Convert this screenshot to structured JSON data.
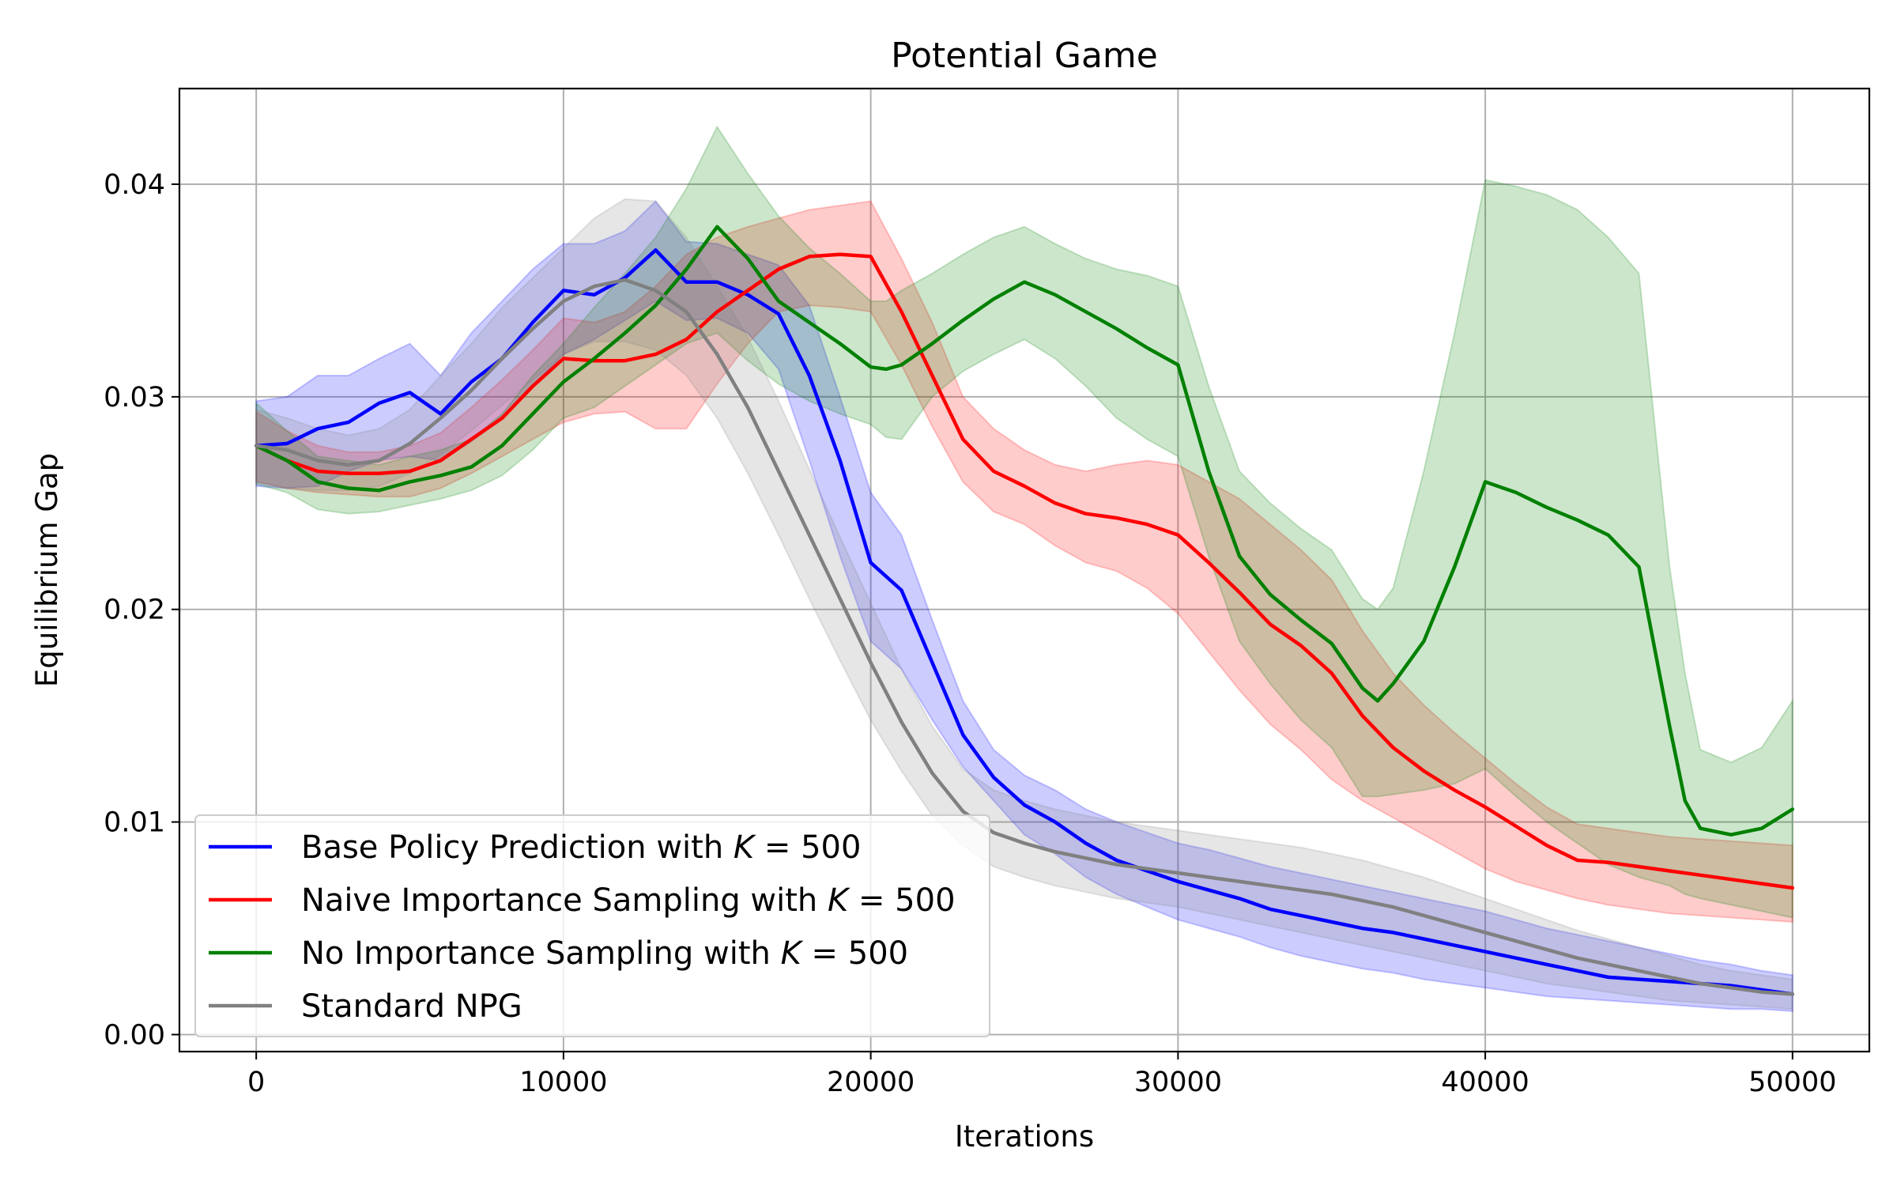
{
  "chart_data": {
    "type": "line",
    "title": "Potential Game",
    "xlabel": "Iterations",
    "ylabel": "Equilibrium Gap",
    "xlim": [
      -2500,
      52500
    ],
    "ylim": [
      -0.0008,
      0.0445
    ],
    "xticks": [
      0,
      10000,
      20000,
      30000,
      40000,
      50000
    ],
    "xtick_labels": [
      "0",
      "10000",
      "20000",
      "30000",
      "40000",
      "50000"
    ],
    "yticks": [
      0.0,
      0.01,
      0.02,
      0.03,
      0.04
    ],
    "ytick_labels": [
      "0.00",
      "0.01",
      "0.02",
      "0.03",
      "0.04"
    ],
    "grid": true,
    "legend_position": "lower-left",
    "series": [
      {
        "name": "Base Policy Prediction with K = 500",
        "legend": {
          "prefix": "Base Policy Prediction with ",
          "var": "K",
          "suffix": " = 500"
        },
        "color": "#0000ff",
        "band_color": "#0000ff",
        "x": [
          0,
          1000,
          2000,
          3000,
          4000,
          5000,
          6000,
          7000,
          8000,
          9000,
          10000,
          11000,
          12000,
          13000,
          14000,
          15000,
          16000,
          17000,
          18000,
          19000,
          20000,
          21000,
          22000,
          23000,
          24000,
          25000,
          26000,
          27000,
          28000,
          29000,
          30000,
          31000,
          32000,
          33000,
          34000,
          35000,
          36000,
          37000,
          38000,
          39000,
          40000,
          41000,
          42000,
          43000,
          44000,
          45000,
          46000,
          47000,
          48000,
          49000,
          50000
        ],
        "y": [
          0.0277,
          0.0278,
          0.0285,
          0.0288,
          0.0297,
          0.0302,
          0.0292,
          0.0307,
          0.0318,
          0.0335,
          0.035,
          0.0348,
          0.0356,
          0.0369,
          0.0354,
          0.0354,
          0.0348,
          0.0339,
          0.031,
          0.027,
          0.0222,
          0.0209,
          0.0175,
          0.0141,
          0.0121,
          0.0108,
          0.01,
          0.009,
          0.0082,
          0.0077,
          0.0072,
          0.0068,
          0.0064,
          0.0059,
          0.0056,
          0.0053,
          0.005,
          0.0048,
          0.0045,
          0.0042,
          0.0039,
          0.0036,
          0.0033,
          0.003,
          0.0027,
          0.0026,
          0.0025,
          0.0024,
          0.0023,
          0.0021,
          0.0019
        ],
        "lower": [
          0.0258,
          0.0257,
          0.0258,
          0.0265,
          0.027,
          0.0272,
          0.027,
          0.0279,
          0.029,
          0.0305,
          0.032,
          0.0327,
          0.0336,
          0.0345,
          0.0336,
          0.0337,
          0.033,
          0.0313,
          0.027,
          0.0225,
          0.0185,
          0.0172,
          0.0148,
          0.0126,
          0.011,
          0.0094,
          0.0085,
          0.0074,
          0.0066,
          0.006,
          0.0054,
          0.005,
          0.0046,
          0.0041,
          0.0037,
          0.0034,
          0.0031,
          0.0029,
          0.0026,
          0.0024,
          0.0022,
          0.002,
          0.0018,
          0.0017,
          0.0016,
          0.0015,
          0.0014,
          0.0013,
          0.0012,
          0.0012,
          0.0011
        ],
        "upper": [
          0.0298,
          0.03,
          0.031,
          0.031,
          0.0318,
          0.0325,
          0.031,
          0.033,
          0.0345,
          0.036,
          0.0372,
          0.0372,
          0.0378,
          0.0392,
          0.0373,
          0.0372,
          0.0367,
          0.0362,
          0.0343,
          0.03,
          0.0255,
          0.0235,
          0.0195,
          0.0157,
          0.0134,
          0.0122,
          0.0115,
          0.0106,
          0.01,
          0.0095,
          0.009,
          0.0087,
          0.0083,
          0.0079,
          0.0076,
          0.0073,
          0.007,
          0.0067,
          0.0064,
          0.0061,
          0.0058,
          0.0054,
          0.005,
          0.0047,
          0.0044,
          0.0041,
          0.0038,
          0.0035,
          0.0033,
          0.003,
          0.0028
        ]
      },
      {
        "name": "Naive Importance Sampling with K = 500",
        "legend": {
          "prefix": "Naive Importance Sampling with ",
          "var": "K",
          "suffix": " = 500"
        },
        "color": "#ff0000",
        "band_color": "#ff0000",
        "x": [
          0,
          1000,
          2000,
          3000,
          4000,
          5000,
          6000,
          7000,
          8000,
          9000,
          10000,
          11000,
          12000,
          13000,
          14000,
          15000,
          16000,
          17000,
          18000,
          19000,
          20000,
          21000,
          22000,
          23000,
          24000,
          25000,
          26000,
          27000,
          28000,
          29000,
          30000,
          31000,
          32000,
          33000,
          34000,
          35000,
          36000,
          37000,
          38000,
          39000,
          40000,
          41000,
          42000,
          43000,
          44000,
          45000,
          46000,
          47000,
          48000,
          49000,
          50000
        ],
        "y": [
          0.0277,
          0.027,
          0.0265,
          0.0264,
          0.0264,
          0.0265,
          0.027,
          0.028,
          0.029,
          0.0305,
          0.0318,
          0.0317,
          0.0317,
          0.032,
          0.0327,
          0.034,
          0.035,
          0.036,
          0.0366,
          0.0367,
          0.0366,
          0.034,
          0.031,
          0.028,
          0.0265,
          0.0258,
          0.025,
          0.0245,
          0.0243,
          0.024,
          0.0235,
          0.0222,
          0.0208,
          0.0193,
          0.0183,
          0.017,
          0.015,
          0.0135,
          0.0124,
          0.0115,
          0.0107,
          0.0098,
          0.0089,
          0.0082,
          0.0081,
          0.0079,
          0.0077,
          0.0075,
          0.0073,
          0.0071,
          0.0069
        ],
        "lower": [
          0.026,
          0.0257,
          0.0255,
          0.0254,
          0.0253,
          0.0253,
          0.0257,
          0.0264,
          0.0272,
          0.028,
          0.0288,
          0.0292,
          0.0293,
          0.0285,
          0.0285,
          0.0306,
          0.0325,
          0.034,
          0.0343,
          0.0342,
          0.034,
          0.0315,
          0.0286,
          0.026,
          0.0246,
          0.024,
          0.023,
          0.0222,
          0.0218,
          0.021,
          0.0198,
          0.018,
          0.0162,
          0.0146,
          0.0134,
          0.012,
          0.011,
          0.0102,
          0.0094,
          0.0086,
          0.0078,
          0.0072,
          0.0068,
          0.0064,
          0.0061,
          0.0059,
          0.0057,
          0.0056,
          0.0055,
          0.0054,
          0.0053
        ],
        "upper": [
          0.0293,
          0.0284,
          0.0277,
          0.0274,
          0.0274,
          0.0277,
          0.0283,
          0.0295,
          0.0308,
          0.0322,
          0.0337,
          0.0335,
          0.034,
          0.0352,
          0.0367,
          0.0375,
          0.038,
          0.0384,
          0.0388,
          0.039,
          0.0392,
          0.0365,
          0.0335,
          0.03,
          0.0285,
          0.0275,
          0.0268,
          0.0265,
          0.0268,
          0.027,
          0.0268,
          0.026,
          0.0252,
          0.024,
          0.0228,
          0.0214,
          0.019,
          0.017,
          0.0155,
          0.0142,
          0.013,
          0.0118,
          0.0107,
          0.0099,
          0.0097,
          0.0095,
          0.0093,
          0.0092,
          0.0091,
          0.009,
          0.0089
        ]
      },
      {
        "name": "No Importance Sampling with K = 500",
        "legend": {
          "prefix": "No Importance Sampling with ",
          "var": "K",
          "suffix": " = 500"
        },
        "color": "#008000",
        "band_color": "#008000",
        "x": [
          0,
          1000,
          2000,
          3000,
          4000,
          5000,
          6000,
          7000,
          8000,
          9000,
          10000,
          11000,
          12000,
          13000,
          14000,
          15000,
          16000,
          17000,
          18000,
          19000,
          20000,
          20500,
          21000,
          22000,
          23000,
          24000,
          25000,
          26000,
          27000,
          28000,
          29000,
          30000,
          31000,
          32000,
          33000,
          34000,
          35000,
          36000,
          36500,
          37000,
          38000,
          39000,
          40000,
          41000,
          42000,
          43000,
          44000,
          45000,
          46000,
          46500,
          47000,
          48000,
          49000,
          50000
        ],
        "y": [
          0.0277,
          0.027,
          0.026,
          0.0257,
          0.0256,
          0.026,
          0.0263,
          0.0267,
          0.0277,
          0.0292,
          0.0307,
          0.0318,
          0.033,
          0.0343,
          0.036,
          0.038,
          0.0365,
          0.0345,
          0.0335,
          0.0325,
          0.0314,
          0.0313,
          0.0315,
          0.0325,
          0.0336,
          0.0346,
          0.0354,
          0.0348,
          0.034,
          0.0332,
          0.0323,
          0.0315,
          0.0265,
          0.0225,
          0.0207,
          0.0195,
          0.0184,
          0.0163,
          0.0157,
          0.0165,
          0.0185,
          0.022,
          0.026,
          0.0255,
          0.0248,
          0.0242,
          0.0235,
          0.022,
          0.0145,
          0.011,
          0.0097,
          0.0094,
          0.0097,
          0.0106
        ],
        "lower": [
          0.0259,
          0.0255,
          0.0247,
          0.0245,
          0.0246,
          0.0249,
          0.0252,
          0.0256,
          0.0263,
          0.0275,
          0.029,
          0.0295,
          0.0305,
          0.0315,
          0.0325,
          0.033,
          0.0317,
          0.0306,
          0.0298,
          0.0292,
          0.0287,
          0.0281,
          0.028,
          0.03,
          0.0312,
          0.032,
          0.0327,
          0.0318,
          0.0305,
          0.029,
          0.028,
          0.0272,
          0.0225,
          0.0185,
          0.0165,
          0.0148,
          0.0135,
          0.0112,
          0.0112,
          0.0113,
          0.0115,
          0.0118,
          0.0125,
          0.0112,
          0.01,
          0.009,
          0.008,
          0.0074,
          0.007,
          0.0066,
          0.0064,
          0.0061,
          0.0058,
          0.0055
        ],
        "upper": [
          0.0297,
          0.0284,
          0.0272,
          0.027,
          0.0268,
          0.0272,
          0.0275,
          0.028,
          0.0292,
          0.031,
          0.0325,
          0.0342,
          0.0358,
          0.0375,
          0.0398,
          0.0427,
          0.0405,
          0.0385,
          0.037,
          0.0358,
          0.0345,
          0.0345,
          0.035,
          0.0358,
          0.0367,
          0.0375,
          0.038,
          0.0372,
          0.0365,
          0.036,
          0.0357,
          0.0352,
          0.0305,
          0.0265,
          0.025,
          0.0238,
          0.0228,
          0.0205,
          0.02,
          0.021,
          0.0265,
          0.033,
          0.0402,
          0.0399,
          0.0395,
          0.0388,
          0.0375,
          0.0358,
          0.022,
          0.017,
          0.0134,
          0.0128,
          0.0135,
          0.0157
        ]
      },
      {
        "name": "Standard NPG",
        "legend": {
          "prefix": "Standard NPG",
          "var": "",
          "suffix": ""
        },
        "color": "#808080",
        "band_color": "#808080",
        "x": [
          0,
          1000,
          2000,
          3000,
          4000,
          5000,
          6000,
          7000,
          8000,
          9000,
          10000,
          11000,
          12000,
          13000,
          14000,
          15000,
          16000,
          17000,
          18000,
          19000,
          20000,
          21000,
          22000,
          23000,
          24000,
          25000,
          26000,
          27000,
          28000,
          29000,
          30000,
          31000,
          32000,
          33000,
          34000,
          35000,
          36000,
          37000,
          38000,
          39000,
          40000,
          41000,
          42000,
          43000,
          44000,
          45000,
          46000,
          47000,
          48000,
          49000,
          50000
        ],
        "y": [
          0.0277,
          0.0275,
          0.027,
          0.0268,
          0.027,
          0.0278,
          0.029,
          0.0303,
          0.0318,
          0.0332,
          0.0345,
          0.0352,
          0.0355,
          0.035,
          0.034,
          0.032,
          0.0295,
          0.0265,
          0.0235,
          0.0205,
          0.0175,
          0.0147,
          0.0123,
          0.0105,
          0.0095,
          0.009,
          0.0086,
          0.0083,
          0.008,
          0.0078,
          0.0076,
          0.0074,
          0.0072,
          0.007,
          0.0068,
          0.0066,
          0.0063,
          0.006,
          0.0056,
          0.0052,
          0.0048,
          0.0044,
          0.004,
          0.0036,
          0.0033,
          0.003,
          0.0027,
          0.0024,
          0.0022,
          0.002,
          0.0019
        ],
        "lower": [
          0.026,
          0.0257,
          0.0256,
          0.0256,
          0.0258,
          0.0264,
          0.0273,
          0.0284,
          0.0296,
          0.0308,
          0.032,
          0.0326,
          0.0326,
          0.0322,
          0.031,
          0.029,
          0.0264,
          0.0235,
          0.0205,
          0.0176,
          0.0148,
          0.0124,
          0.0103,
          0.0089,
          0.0079,
          0.0074,
          0.007,
          0.0067,
          0.0064,
          0.0062,
          0.006,
          0.0057,
          0.0054,
          0.0051,
          0.0048,
          0.0045,
          0.0042,
          0.0039,
          0.0036,
          0.0033,
          0.003,
          0.0027,
          0.0024,
          0.0022,
          0.002,
          0.0018,
          0.0016,
          0.0015,
          0.0014,
          0.0013,
          0.0012
        ],
        "upper": [
          0.0294,
          0.029,
          0.0285,
          0.0282,
          0.0285,
          0.0294,
          0.031,
          0.0325,
          0.0342,
          0.0356,
          0.037,
          0.0384,
          0.0393,
          0.0392,
          0.0375,
          0.0352,
          0.0328,
          0.0298,
          0.0266,
          0.0234,
          0.0203,
          0.0172,
          0.0145,
          0.0125,
          0.0115,
          0.011,
          0.0106,
          0.0103,
          0.01,
          0.0098,
          0.0096,
          0.0094,
          0.0092,
          0.009,
          0.0088,
          0.0085,
          0.0082,
          0.0078,
          0.0074,
          0.0069,
          0.0064,
          0.0059,
          0.0054,
          0.0049,
          0.0045,
          0.0041,
          0.0037,
          0.0033,
          0.003,
          0.0028,
          0.0026
        ]
      }
    ]
  }
}
